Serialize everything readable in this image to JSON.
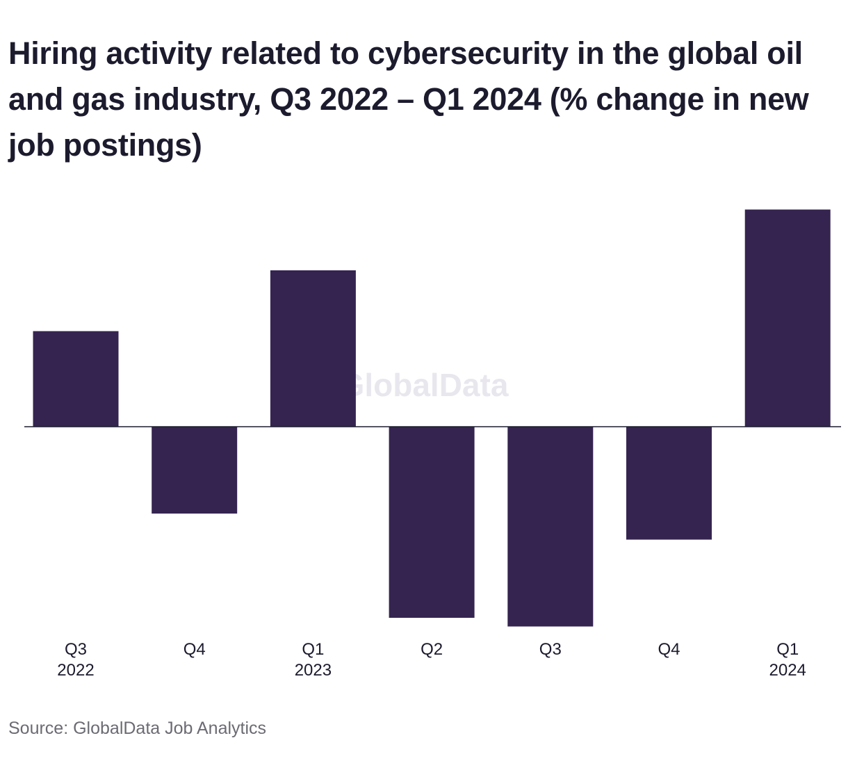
{
  "chart_data": {
    "type": "bar",
    "title": "Hiring activity related to cybersecurity in the global oil and gas industry, Q3 2022 – Q1 2024 (% change in new job postings)",
    "categories": [
      [
        "Q3",
        "2022"
      ],
      [
        "Q4"
      ],
      [
        "Q1",
        "2023"
      ],
      [
        "Q2"
      ],
      [
        "Q3"
      ],
      [
        "Q4"
      ],
      [
        "Q1",
        "2024"
      ]
    ],
    "values": [
      11,
      -10,
      18,
      -22,
      -23,
      -13,
      25
    ],
    "ylim": [
      -25,
      27
    ],
    "xlabel": "",
    "ylabel": "",
    "grid": false,
    "bar_color": "#352450",
    "watermark": "GlobalData",
    "source": "Source: GlobalData Job Analytics"
  }
}
